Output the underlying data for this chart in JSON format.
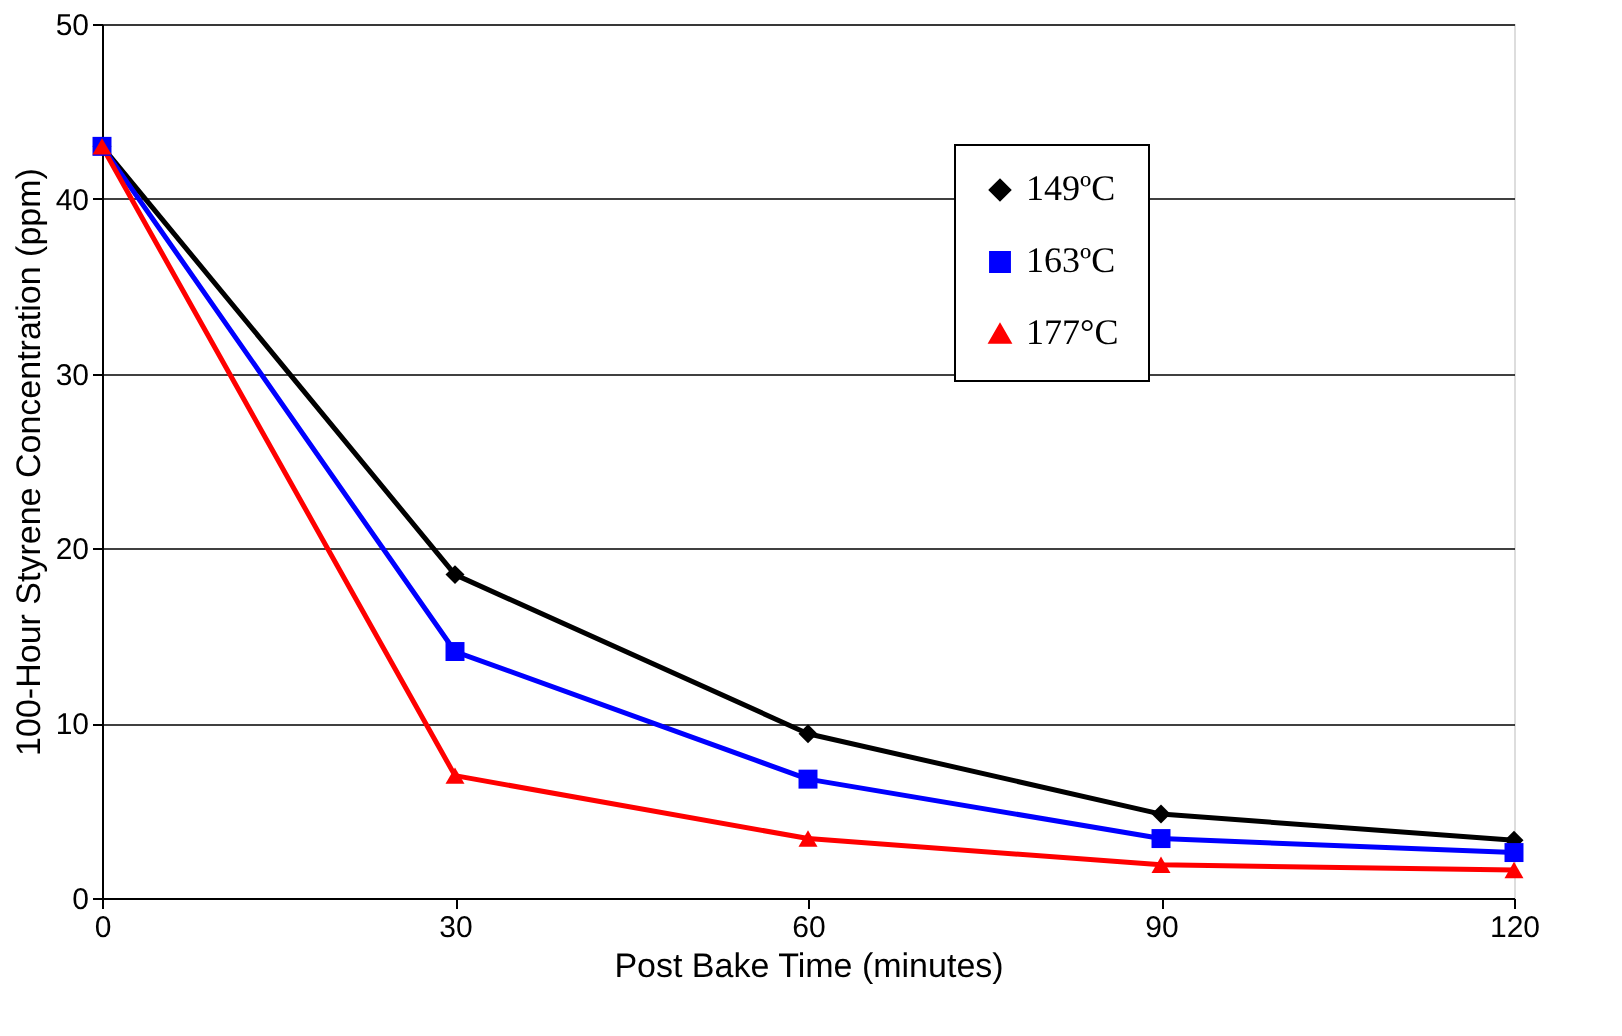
{
  "chart_data": {
    "type": "line",
    "xlabel": "Post Bake Time (minutes)",
    "ylabel": "100-Hour Styrene Concentration (ppm)",
    "x": [
      0,
      30,
      60,
      90,
      120
    ],
    "xlim": [
      0,
      120
    ],
    "xticks": [
      0,
      30,
      60,
      90,
      120
    ],
    "ylim": [
      0,
      50
    ],
    "yticks": [
      0,
      10,
      20,
      30,
      40,
      50
    ],
    "grid": "y",
    "legend": "top right",
    "line_style": "solid",
    "series": [
      {
        "name": "149ºC",
        "color": "#000000",
        "marker": "diamond",
        "values": [
          43,
          18.5,
          9.4,
          4.8,
          3.3
        ]
      },
      {
        "name": "163ºC",
        "color": "#0000ff",
        "marker": "square",
        "values": [
          43,
          14.1,
          6.8,
          3.4,
          2.6
        ]
      },
      {
        "name": "177°C",
        "color": "#ff0000",
        "marker": "triangle",
        "values": [
          43,
          7.0,
          3.4,
          1.9,
          1.6
        ]
      }
    ]
  }
}
